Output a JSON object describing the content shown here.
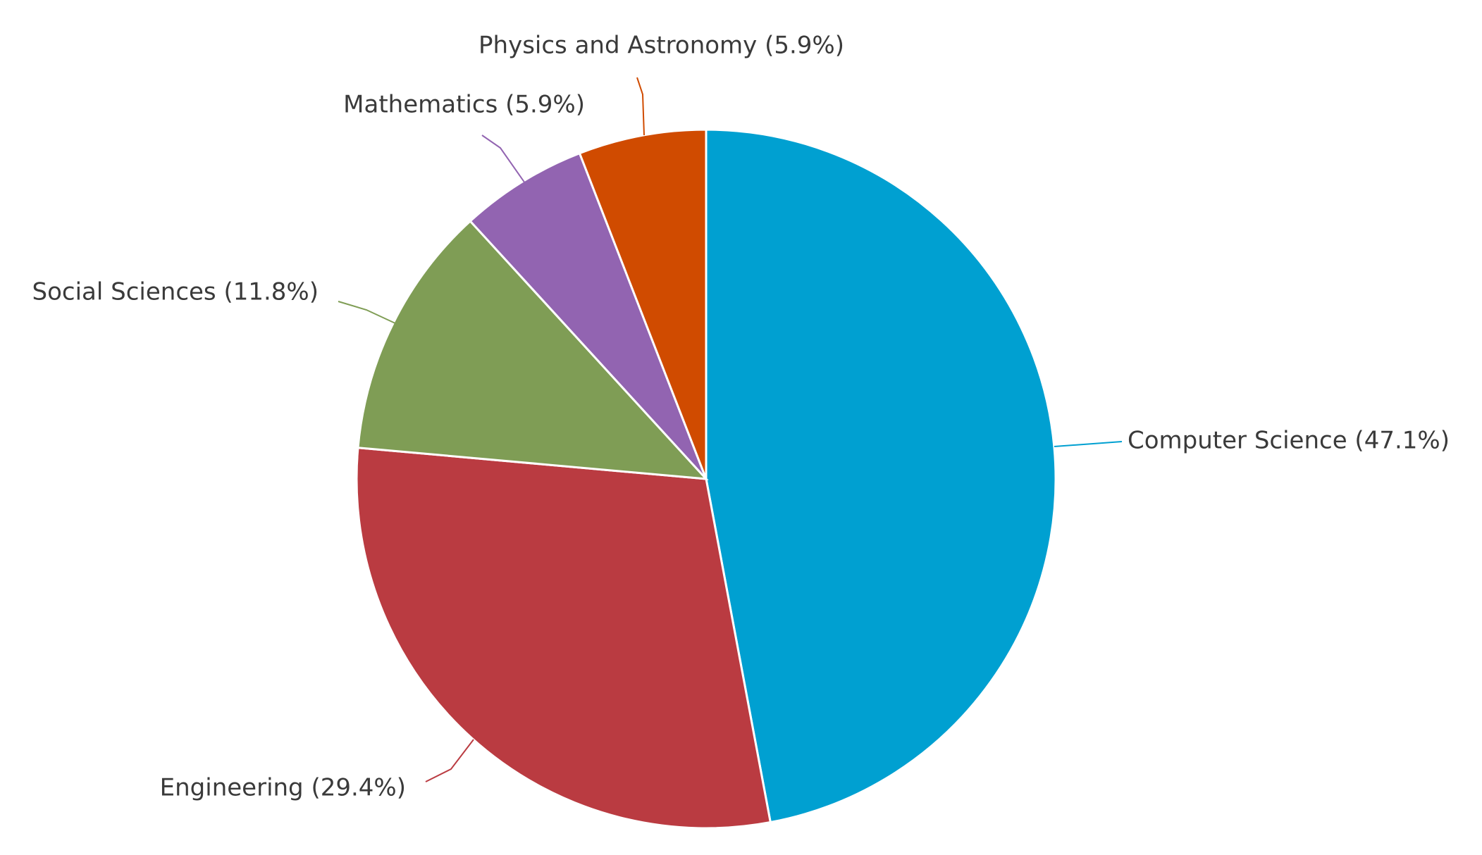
{
  "chart_data": {
    "type": "pie",
    "title": "",
    "start_angle_deg": 0,
    "direction": "clockwise",
    "slices": [
      {
        "label": "Computer Science",
        "value": 47.1,
        "display": "Computer Science (47.1%)",
        "color": "#00a0d1"
      },
      {
        "label": "Engineering",
        "value": 29.4,
        "display": "Engineering (29.4%)",
        "color": "#ba3b41"
      },
      {
        "label": "Social Sciences",
        "value": 11.8,
        "display": "Social Sciences (11.8%)",
        "color": "#7f9d55"
      },
      {
        "label": "Mathematics",
        "value": 5.9,
        "display": "Mathematics (5.9%)",
        "color": "#9264b1"
      },
      {
        "label": "Physics and Astronomy",
        "value": 5.9,
        "display": "Physics and Astronomy (5.9%)",
        "color": "#d04b00"
      }
    ]
  }
}
